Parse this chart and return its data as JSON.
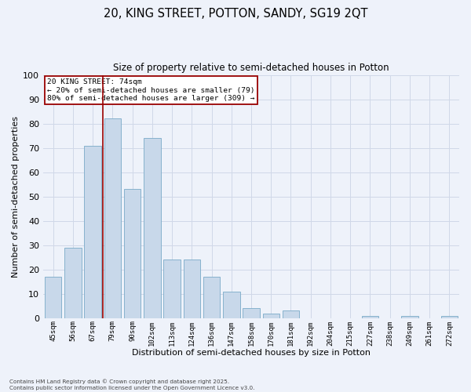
{
  "title_line1": "20, KING STREET, POTTON, SANDY, SG19 2QT",
  "title_line2": "Size of property relative to semi-detached houses in Potton",
  "xlabel": "Distribution of semi-detached houses by size in Potton",
  "ylabel": "Number of semi-detached properties",
  "categories": [
    "45sqm",
    "56sqm",
    "67sqm",
    "79sqm",
    "90sqm",
    "102sqm",
    "113sqm",
    "124sqm",
    "136sqm",
    "147sqm",
    "158sqm",
    "170sqm",
    "181sqm",
    "192sqm",
    "204sqm",
    "215sqm",
    "227sqm",
    "238sqm",
    "249sqm",
    "261sqm",
    "272sqm"
  ],
  "values": [
    17,
    29,
    71,
    82,
    53,
    74,
    24,
    24,
    17,
    11,
    4,
    2,
    3,
    0,
    0,
    0,
    1,
    0,
    1,
    0,
    1
  ],
  "bar_color": "#c8d8ea",
  "bar_edge_color": "#7aaac8",
  "grid_color": "#d0d8e8",
  "bg_color": "#eef2fa",
  "property_line_index": 3,
  "property_line_color": "#990000",
  "annotation_title": "20 KING STREET: 74sqm",
  "annotation_line1": "← 20% of semi-detached houses are smaller (79)",
  "annotation_line2": "80% of semi-detached houses are larger (309) →",
  "annotation_box_color": "#990000",
  "footer_line1": "Contains HM Land Registry data © Crown copyright and database right 2025.",
  "footer_line2": "Contains public sector information licensed under the Open Government Licence v3.0.",
  "ylim": [
    0,
    100
  ],
  "yticks": [
    0,
    10,
    20,
    30,
    40,
    50,
    60,
    70,
    80,
    90,
    100
  ]
}
